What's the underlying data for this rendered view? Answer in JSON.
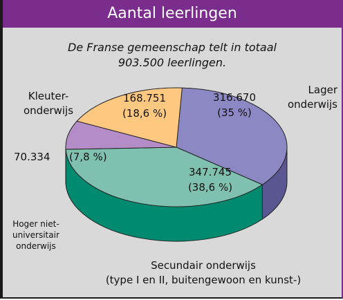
{
  "chart_data": {
    "type": "pie",
    "title": "Aantal leerlingen",
    "subtitle": "De Franse gemeenschap telt in totaal\n903.500 leerlingen.",
    "categories": [
      "Lager\nonderwijs",
      "Secundair onderwijs\n(type I en II, buitengewoon en kunst-)",
      "Hoger niet-\nuniversitair\nonderwijs",
      "Kleuter-\nonderwijs"
    ],
    "values": [
      35,
      38.6,
      7.8,
      18.6
    ],
    "value_labels": [
      "(35 %)",
      "(38,6 %)",
      "(7,8 %)",
      "(18,6 %)"
    ],
    "counts": [
      316670,
      347745,
      70334,
      168751
    ],
    "count_labels": [
      "316.670",
      "347.745",
      "70.334",
      "168.751"
    ],
    "colors": [
      "#8c88c4",
      "#80c0b0",
      "#b48cc8",
      "#ffc880"
    ],
    "side_colors": [
      "#5a5692",
      "#008a70",
      "#6a2a8a",
      "#d08a3a"
    ]
  }
}
